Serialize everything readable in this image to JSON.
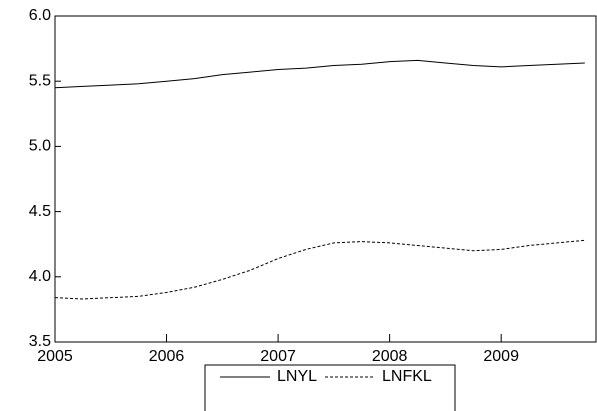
{
  "chart_data": {
    "type": "line",
    "x": [
      2005,
      2005.25,
      2005.5,
      2005.75,
      2006,
      2006.25,
      2006.5,
      2006.75,
      2007,
      2007.25,
      2007.5,
      2007.75,
      2008,
      2008.25,
      2008.5,
      2008.75,
      2009,
      2009.25,
      2009.5,
      2009.75
    ],
    "series": [
      {
        "name": "LNYL",
        "color": "#000000",
        "dash": false,
        "values": [
          5.45,
          5.46,
          5.47,
          5.48,
          5.5,
          5.52,
          5.55,
          5.57,
          5.59,
          5.6,
          5.62,
          5.63,
          5.65,
          5.66,
          5.64,
          5.62,
          5.61,
          5.62,
          5.63,
          5.64
        ]
      },
      {
        "name": "LNFKL",
        "color": "#000000",
        "dash": true,
        "values": [
          3.84,
          3.83,
          3.84,
          3.85,
          3.88,
          3.92,
          3.98,
          4.05,
          4.14,
          4.21,
          4.26,
          4.27,
          4.26,
          4.24,
          4.22,
          4.2,
          4.21,
          4.24,
          4.26,
          4.28
        ]
      }
    ],
    "xlim": [
      2005,
      2009.85
    ],
    "xticks": [
      2005,
      2006,
      2007,
      2008,
      2009
    ],
    "ylim": [
      3.5,
      6.0
    ],
    "yticks": [
      3.5,
      {
        "value": 4.0,
        "label": "4.0"
      },
      4.5,
      {
        "value": 5.0,
        "label": "5.0"
      },
      5.5,
      {
        "value": 6.0,
        "label": "6.0"
      }
    ],
    "grid": false,
    "legend": "bottom"
  }
}
